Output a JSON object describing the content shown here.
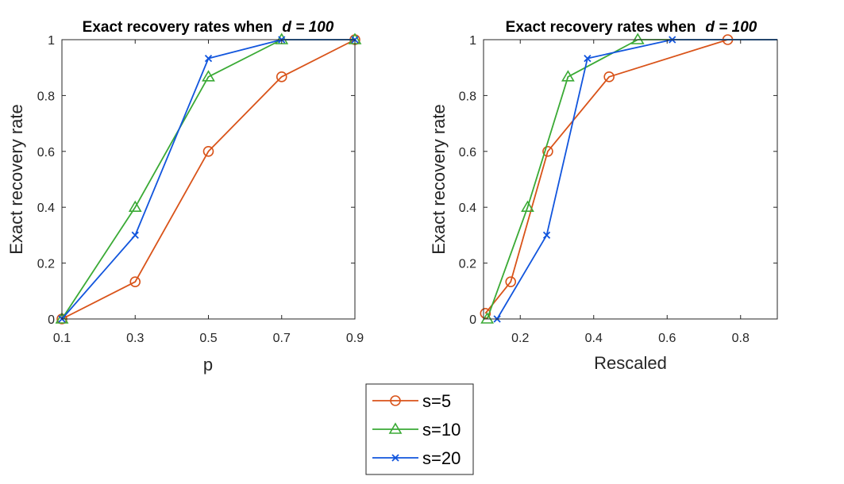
{
  "chart_data": [
    {
      "type": "line",
      "title_prefix": "Exact recovery rates when",
      "title_var": "d = 100",
      "xlabel": "p",
      "ylabel": "Exact recovery rate",
      "xlim": [
        0.1,
        0.9
      ],
      "ylim": [
        0,
        1
      ],
      "xticks": [
        "0.1",
        "0.3",
        "0.5",
        "0.7",
        "0.9"
      ],
      "yticks": [
        "0",
        "0.2",
        "0.4",
        "0.6",
        "0.8",
        "1"
      ],
      "grid": false,
      "series": [
        {
          "name": "s=5",
          "color": "#D95319",
          "marker": "circle",
          "x": [
            0.1,
            0.3,
            0.5,
            0.7,
            0.9
          ],
          "y": [
            0,
            0.133,
            0.6,
            0.867,
            1
          ]
        },
        {
          "name": "s=10",
          "color": "#3AAA35",
          "marker": "triangle",
          "x": [
            0.1,
            0.3,
            0.5,
            0.7,
            0.9
          ],
          "y": [
            0,
            0.4,
            0.867,
            1,
            1
          ]
        },
        {
          "name": "s=20",
          "color": "#1155DD",
          "marker": "x",
          "x": [
            0.1,
            0.3,
            0.5,
            0.7,
            0.9
          ],
          "y": [
            0,
            0.3,
            0.933,
            1,
            1
          ]
        }
      ]
    },
    {
      "type": "line",
      "title_prefix": "Exact recovery rates when",
      "title_var": "d = 100",
      "xlabel": "Rescaled",
      "ylabel": "Exact recovery rate",
      "xlim": [
        0.1,
        0.9
      ],
      "ylim": [
        0,
        1
      ],
      "xticks": [
        "0.2",
        "0.4",
        "0.6",
        "0.8"
      ],
      "yticks": [
        "0",
        "0.2",
        "0.4",
        "0.6",
        "0.8",
        "1"
      ],
      "grid": false,
      "series": [
        {
          "name": "s=5",
          "color": "#D95319",
          "marker": "circle",
          "x": [
            0.105,
            0.174,
            0.275,
            0.442,
            0.765,
            0.9
          ],
          "y": [
            0.02,
            0.133,
            0.6,
            0.867,
            1,
            1
          ]
        },
        {
          "name": "s=10",
          "color": "#3AAA35",
          "marker": "triangle",
          "x": [
            0.11,
            0.22,
            0.33,
            0.52,
            0.9
          ],
          "y": [
            0,
            0.4,
            0.867,
            1,
            1
          ]
        },
        {
          "name": "s=20",
          "color": "#1155DD",
          "marker": "x",
          "x": [
            0.137,
            0.272,
            0.383,
            0.614,
            0.9
          ],
          "y": [
            0,
            0.3,
            0.933,
            1,
            1
          ]
        }
      ]
    }
  ],
  "legend": {
    "placement": "bottom-center",
    "entries": [
      "s=5",
      "s=10",
      "s=20"
    ]
  }
}
